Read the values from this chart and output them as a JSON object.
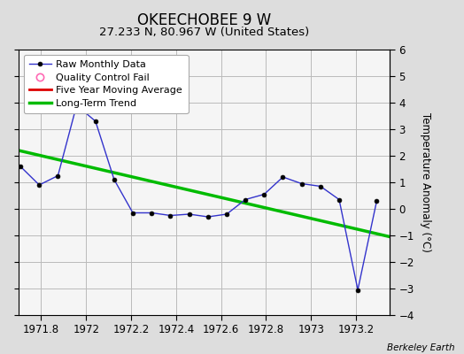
{
  "title": "OKEECHOBEE 9 W",
  "subtitle": "27.233 N, 80.967 W (United States)",
  "ylabel": "Temperature Anomaly (°C)",
  "attribution": "Berkeley Earth",
  "xlim": [
    1971.7,
    1973.35
  ],
  "ylim": [
    -4,
    6
  ],
  "yticks": [
    -4,
    -3,
    -2,
    -1,
    0,
    1,
    2,
    3,
    4,
    5,
    6
  ],
  "xticks": [
    1971.8,
    1972.0,
    1972.2,
    1972.4,
    1972.6,
    1972.8,
    1973.0,
    1973.2
  ],
  "xtick_labels": [
    "1971.8",
    "1972",
    "1972.2",
    "1972.4",
    "1972.6",
    "1972.8",
    "1973",
    "1973.2"
  ],
  "raw_x": [
    1971.708,
    1971.792,
    1971.875,
    1971.958,
    1972.042,
    1972.125,
    1972.208,
    1972.292,
    1972.375,
    1972.458,
    1972.542,
    1972.625,
    1972.708,
    1972.792,
    1972.875,
    1972.958,
    1973.042,
    1973.125,
    1973.208,
    1973.292
  ],
  "raw_y": [
    1.6,
    0.9,
    1.25,
    3.9,
    3.3,
    1.1,
    -0.15,
    -0.15,
    -0.25,
    -0.2,
    -0.3,
    -0.2,
    0.35,
    0.55,
    1.2,
    0.95,
    0.85,
    0.35,
    -3.05,
    0.3
  ],
  "raw_color": "#3333cc",
  "raw_marker_color": "black",
  "raw_linewidth": 1.0,
  "raw_markersize": 3.5,
  "trend_x": [
    1971.7,
    1973.35
  ],
  "trend_y": [
    2.2,
    -1.05
  ],
  "trend_color": "#00bb00",
  "trend_linewidth": 2.5,
  "moving_avg_color": "#dd0000",
  "moving_avg_linewidth": 2.0,
  "bg_color": "#dddddd",
  "plot_bg_color": "#f5f5f5",
  "grid_color": "#bbbbbb",
  "title_fontsize": 12,
  "subtitle_fontsize": 9.5,
  "ylabel_fontsize": 8.5,
  "tick_fontsize": 8.5,
  "attribution_fontsize": 7.5
}
